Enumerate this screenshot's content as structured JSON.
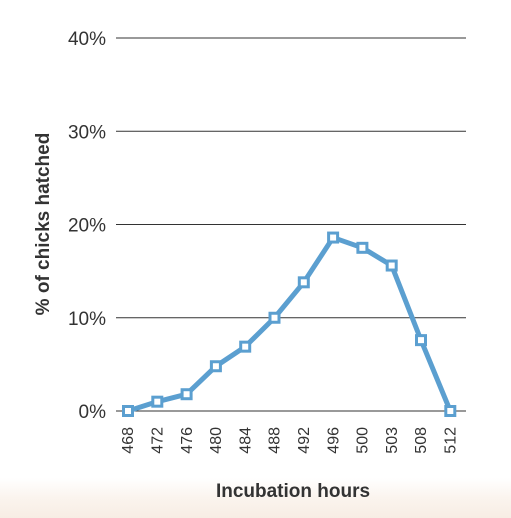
{
  "colors": {
    "line": "#5b9fd0",
    "grid": "#333333",
    "text": "#333333",
    "marker_fill": "#ffffff"
  },
  "chart_data": {
    "type": "line",
    "xlabel": "Incubation hours",
    "ylabel": "% of chicks hatched",
    "categories": [
      "468",
      "472",
      "476",
      "480",
      "484",
      "488",
      "492",
      "496",
      "500",
      "503",
      "508",
      "512"
    ],
    "series": [
      {
        "values": [
          0,
          1,
          1.8,
          4.8,
          6.9,
          10,
          13.8,
          18.6,
          17.5,
          15.6,
          7.6,
          0
        ]
      }
    ],
    "ylim": [
      0,
      40
    ],
    "yticks": [
      0,
      10,
      20,
      30,
      40
    ],
    "ytick_labels": [
      "0%",
      "10%",
      "20%",
      "30%",
      "40%"
    ],
    "grid": true,
    "legend": "none"
  }
}
